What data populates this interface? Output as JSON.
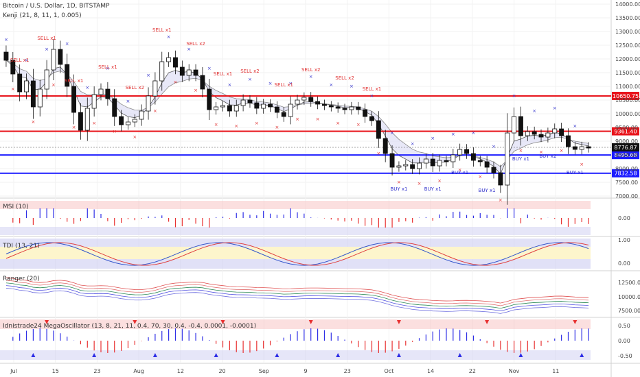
{
  "header": {
    "title": "Bitcoin / U.S. Dollar, 1D, BITSTAMP",
    "indicator": "Kenji (21, 8, 11, 1, 0.005)"
  },
  "colors": {
    "up_candle": "#ffffff",
    "down_candle": "#111111",
    "resistance_line": "#e8141b",
    "support_line": "#1c1cff",
    "buy_marker": "#3333cc",
    "sell_marker": "#e03030",
    "osc_positive": "#2e2ee6",
    "osc_negative": "#e83030",
    "band_red": "#f6b8b8",
    "band_blue": "#c8c8f0",
    "tdi_fill": "#fdf5cc"
  },
  "chart_data": {
    "type": "candlestick",
    "price_axis": {
      "ylim": [
        7000,
        14000
      ],
      "ticks": [
        "14000.00",
        "13500.00",
        "13000.00",
        "12500.00",
        "12000.00",
        "11500.00",
        "11000.00",
        "10500.00",
        "10000.00",
        "9500.00",
        "9000.00",
        "8500.00",
        "8000.00",
        "7500.00",
        "7000.00"
      ]
    },
    "date_axis": {
      "labels": [
        "Jul",
        "15",
        "23",
        "Aug",
        "12",
        "20",
        "Sep",
        "9",
        "23",
        "Oct",
        "14",
        "22",
        "Nov",
        "11"
      ]
    },
    "horizontal_levels": [
      {
        "value": 10650.75,
        "label": "10650.75",
        "color": "#e8141b"
      },
      {
        "value": 9361.4,
        "label": "9361.40",
        "color": "#e8141b"
      },
      {
        "value": 8495.68,
        "label": "8495.68",
        "color": "#1c1cff"
      },
      {
        "value": 7832.58,
        "label": "7832.58",
        "color": "#1c1cff"
      }
    ],
    "last_price": {
      "value": 8776.87,
      "label": "8776.87"
    },
    "signals": [
      {
        "text": "SELL x1",
        "kind": "sell"
      },
      {
        "text": "SELL x1",
        "kind": "sell"
      },
      {
        "text": "SELL x1",
        "kind": "sell"
      },
      {
        "text": "SELL x1",
        "kind": "sell"
      },
      {
        "text": "SELL x2",
        "kind": "sell"
      },
      {
        "text": "SELL x1",
        "kind": "sell"
      },
      {
        "text": "SELL x2",
        "kind": "sell"
      },
      {
        "text": "SELL x1",
        "kind": "sell"
      },
      {
        "text": "SELL x2",
        "kind": "sell"
      },
      {
        "text": "SELL x1",
        "kind": "sell"
      },
      {
        "text": "SELL x2",
        "kind": "sell"
      },
      {
        "text": "SELL x2",
        "kind": "sell"
      },
      {
        "text": "SELL x1",
        "kind": "sell"
      },
      {
        "text": "BUY x1",
        "kind": "buy"
      },
      {
        "text": "BUY x1",
        "kind": "buy"
      },
      {
        "text": "BUY x1",
        "kind": "buy"
      },
      {
        "text": "BUY x1",
        "kind": "buy"
      },
      {
        "text": "BUY x1",
        "kind": "buy"
      },
      {
        "text": "BUY x2",
        "kind": "buy"
      },
      {
        "text": "BUY x1",
        "kind": "buy"
      }
    ],
    "closes": [
      11950,
      11450,
      10800,
      11200,
      10250,
      10900,
      11600,
      12350,
      11800,
      11000,
      10050,
      9400,
      10200,
      10700,
      10900,
      10550,
      9900,
      9600,
      9700,
      9800,
      10100,
      10650,
      11200,
      11900,
      12050,
      11700,
      11400,
      11600,
      11400,
      10900,
      10150,
      10250,
      10300,
      10100,
      10300,
      10500,
      10400,
      10200,
      10350,
      10250,
      10050,
      9900,
      10350,
      10500,
      10600,
      10450,
      10350,
      10300,
      10250,
      10200,
      10150,
      10250,
      10150,
      9900,
      9750,
      9100,
      8550,
      8050,
      8100,
      8150,
      8000,
      8200,
      8350,
      8100,
      8300,
      8250,
      8500,
      8700,
      8550,
      8300,
      8250,
      8050,
      7850,
      7400,
      9300,
      9900,
      9200,
      9350,
      9250,
      9150,
      9300,
      9450,
      9200,
      8800,
      8700,
      8800,
      8750
    ],
    "oscillators": [
      {
        "name": "MSI",
        "params": "(10)",
        "axis": [
          "0.00"
        ]
      },
      {
        "name": "TDI",
        "params": "(13, 21)",
        "axis": [
          "1.00",
          "0.00"
        ]
      },
      {
        "name": "Ranger",
        "params": "(20)",
        "axis": [
          "12500.00",
          "10000.00",
          "7500.00"
        ]
      },
      {
        "name": "Idnistrade24 MegaOscillator",
        "params": "(13, 8, 21, 11, 0.4, 70, 30, 0.4, -0.4, 0.0001, -0.0001)",
        "axis": [
          "0.50",
          "0.00",
          "-0.50"
        ]
      }
    ]
  }
}
